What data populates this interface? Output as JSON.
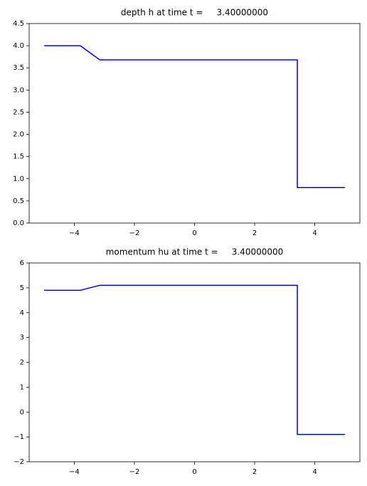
{
  "chart_data": [
    {
      "type": "line",
      "title": "depth h at time t =     3.40000000",
      "x": [
        -5,
        -3.8,
        -3.15,
        3.42,
        3.42,
        5
      ],
      "values": [
        4.0,
        4.0,
        3.68,
        3.68,
        0.8,
        0.8
      ],
      "color": "#0000ff",
      "xlim": [
        -5.5,
        5.5
      ],
      "xticks": [
        {
          "value": -4,
          "label": "−4"
        },
        {
          "value": -2,
          "label": "−2"
        },
        {
          "value": 0,
          "label": "0"
        },
        2,
        4
      ],
      "ylim": [
        0,
        4.5
      ],
      "yticks": [
        {
          "value": 0,
          "label": "0.0"
        },
        0.5,
        {
          "value": 1,
          "label": "1.0"
        },
        1.5,
        {
          "value": 2,
          "label": "2.0"
        },
        2.5,
        {
          "value": 3,
          "label": "3.0"
        },
        3.5,
        {
          "value": 4,
          "label": "4.0"
        },
        4.5
      ],
      "grid": false
    },
    {
      "type": "line",
      "title": "momentum hu at time t =     3.40000000",
      "x": [
        -5,
        -3.8,
        -3.15,
        3.42,
        3.42,
        5
      ],
      "values": [
        4.9,
        4.9,
        5.1,
        5.1,
        -0.9,
        -0.9
      ],
      "color": "#0000ff",
      "xlim": [
        -5.5,
        5.5
      ],
      "xticks": [
        {
          "value": -4,
          "label": "−4"
        },
        {
          "value": -2,
          "label": "−2"
        },
        {
          "value": 0,
          "label": "0"
        },
        2,
        4
      ],
      "ylim": [
        -2,
        6
      ],
      "yticks": [
        {
          "value": -2,
          "label": "−2"
        },
        {
          "value": -1,
          "label": "−1"
        },
        0,
        1,
        2,
        3,
        4,
        5,
        6
      ],
      "grid": false
    }
  ]
}
